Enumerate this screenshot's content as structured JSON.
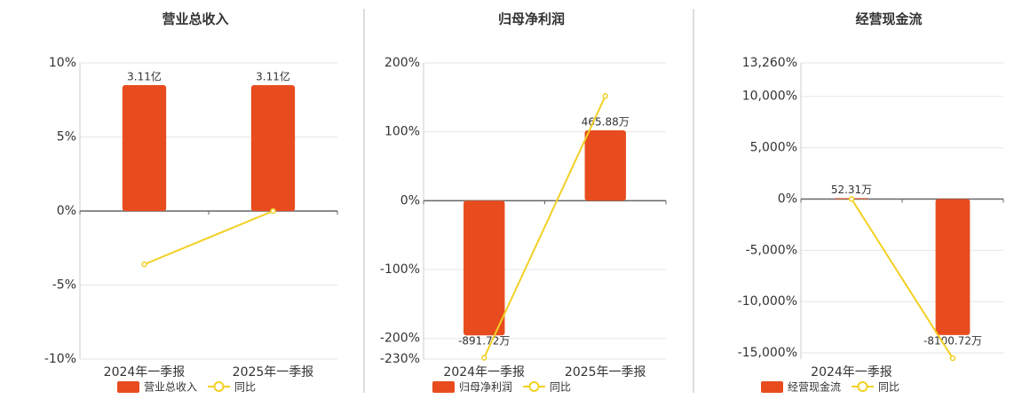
{
  "chart_data": [
    {
      "type": "combo",
      "title": "营业总收入",
      "categories": [
        "2024年一季报",
        "2025年一季报"
      ],
      "series": [
        {
          "name": "营业总收入",
          "type": "bar",
          "color": "#e84c1e",
          "values": [
            3.11,
            3.11
          ],
          "value_labels": [
            "3.11亿",
            "3.11亿"
          ]
        },
        {
          "name": "同比",
          "type": "line",
          "color": "#f2d024",
          "values": [
            -3.6,
            0
          ]
        }
      ],
      "ylim": [
        -10,
        10
      ],
      "yticks": [
        {
          "value": 10,
          "label": "10%"
        },
        {
          "value": 5,
          "label": "5%"
        },
        {
          "value": 0,
          "label": "0%"
        },
        {
          "value": -5,
          "label": "-5%"
        },
        {
          "value": -10,
          "label": "-10%"
        }
      ],
      "grid": true
    },
    {
      "type": "combo",
      "title": "归母净利润",
      "categories": [
        "2024年一季报",
        "2025年一季报"
      ],
      "series": [
        {
          "name": "归母净利润",
          "type": "bar",
          "color": "#e84c1e",
          "values": [
            -891.72,
            465.88
          ],
          "value_labels": [
            "-891.72万",
            "465.88万"
          ]
        },
        {
          "name": "同比",
          "type": "line",
          "color": "#f2d024",
          "values": [
            -228,
            152
          ]
        }
      ],
      "ylim": [
        -230,
        200
      ],
      "yticks": [
        {
          "value": 200,
          "label": "200%"
        },
        {
          "value": 100,
          "label": "100%"
        },
        {
          "value": 0,
          "label": "0%"
        },
        {
          "value": -100,
          "label": "-100%"
        },
        {
          "value": -200,
          "label": "-200%"
        },
        {
          "value": -230,
          "label": "-230%"
        }
      ],
      "grid": true
    },
    {
      "type": "combo",
      "title": "经营现金流",
      "categories": [
        "2024年一季报",
        null
      ],
      "series": [
        {
          "name": "经营现金流",
          "type": "bar",
          "color": "#e84c1e",
          "values": [
            52.31,
            -8100.72
          ],
          "value_labels": [
            "52.31万",
            "-8100.72万"
          ]
        },
        {
          "name": "同比",
          "type": "line",
          "color": "#f2d024",
          "values": [
            0,
            -15517
          ]
        }
      ],
      "ylim": [
        -15600,
        13260
      ],
      "yticks": [
        {
          "value": 13260,
          "label": "13,260%"
        },
        {
          "value": 10000,
          "label": "10,000%"
        },
        {
          "value": 5000,
          "label": "5,000%"
        },
        {
          "value": 0,
          "label": "0%"
        },
        {
          "value": -5000,
          "label": "-5,000%"
        },
        {
          "value": -10000,
          "label": "-10,000%"
        },
        {
          "value": -15000,
          "label": "-15,000%"
        }
      ],
      "grid": true
    }
  ]
}
